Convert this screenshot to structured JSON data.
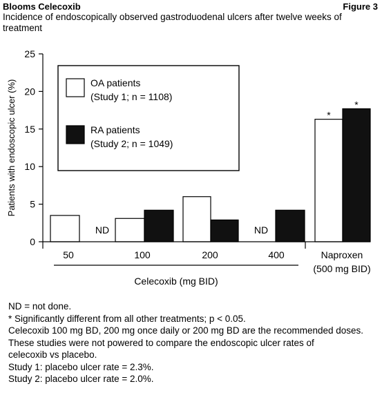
{
  "header": {
    "left": "Blooms Celecoxib",
    "right": "Figure 3"
  },
  "chart_data": {
    "type": "bar",
    "title": "Incidence of endoscopically observed gastroduodenal ulcers after twelve weeks of treatment",
    "ylabel": "Patients with endoscopic ulcer (%)",
    "xlabel": "Celecoxib (mg BID)",
    "ylim": [
      0,
      25
    ],
    "yticks": [
      0,
      5,
      10,
      15,
      20,
      25
    ],
    "categories": [
      "50",
      "100",
      "200",
      "400",
      "Naproxen\n(500 mg BID)"
    ],
    "category_lines": [
      [
        "50"
      ],
      [
        "100"
      ],
      [
        "200"
      ],
      [
        "400"
      ],
      [
        "Naproxen",
        "(500 mg BID)"
      ]
    ],
    "series": [
      {
        "name": "OA patients (Study 1; n = 1108)",
        "values": [
          3.5,
          3.1,
          6.0,
          null,
          16.3
        ],
        "fill": "#ffffff"
      },
      {
        "name": "RA patients (Study 2; n = 1049)",
        "values": [
          null,
          4.2,
          2.9,
          4.2,
          17.7
        ],
        "fill": "#111111"
      }
    ],
    "missing_label": "ND",
    "significance_marker": "*",
    "significant": [
      [
        false,
        false,
        false,
        false,
        true
      ],
      [
        false,
        false,
        false,
        false,
        true
      ]
    ],
    "legend": {
      "position": "top-left",
      "entries": [
        {
          "lines": [
            "OA patients",
            "(Study 1; n = 1108)"
          ],
          "fill": "#ffffff"
        },
        {
          "lines": [
            "RA patients",
            "(Study 2; n = 1049)"
          ],
          "fill": "#111111"
        }
      ]
    },
    "grid": false
  },
  "footnotes": [
    "ND = not done.",
    "* Significantly different from all other treatments; p < 0.05.",
    "Celecoxib 100 mg BD, 200 mg once daily or 200 mg BD are the recommended doses.",
    "These studies were not powered to compare the endoscopic ulcer rates of",
    "celecoxib vs placebo.",
    "Study 1: placebo ulcer rate = 2.3%.",
    "Study 2: placebo ulcer rate = 2.0%."
  ]
}
